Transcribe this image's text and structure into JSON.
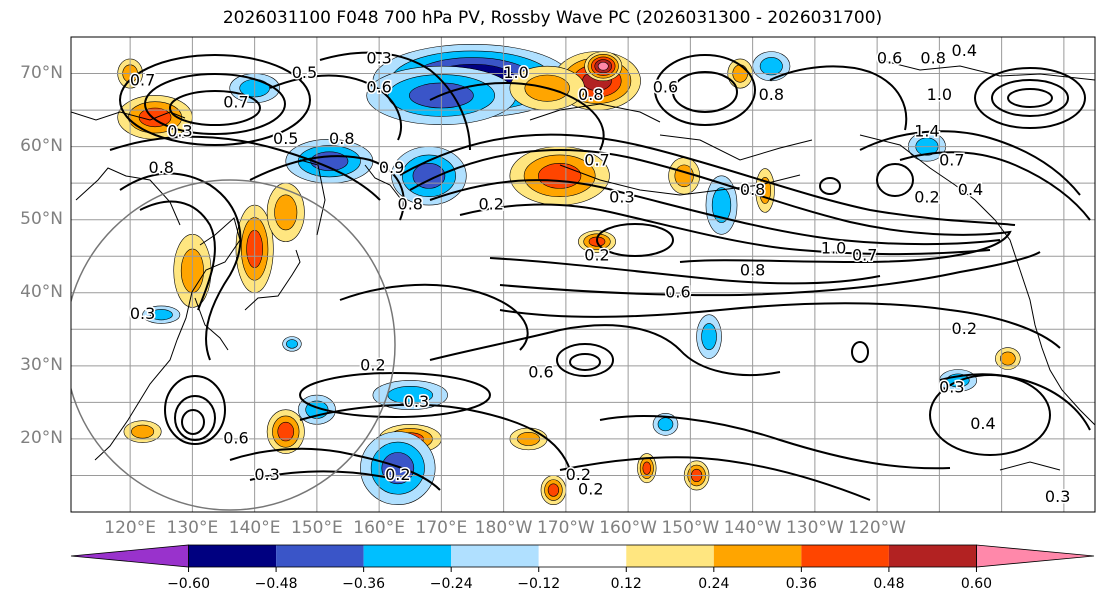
{
  "title": "2026031100 F048 700 hPa PV, Rossby Wave PC (2026031300 - 2026031700)",
  "lat_labels": [
    "70°N",
    "60°N",
    "50°N",
    "40°N",
    "30°N",
    "20°N"
  ],
  "lon_labels": [
    "120°E",
    "130°E",
    "140°E",
    "150°E",
    "160°E",
    "170°E",
    "180°W",
    "170°W",
    "160°W",
    "150°W",
    "140°W",
    "130°W",
    "120°W"
  ],
  "colorbar": {
    "tick_labels": [
      "−0.60",
      "−0.48",
      "−0.36",
      "−0.24",
      "−0.12",
      "0.12",
      "0.24",
      "0.36",
      "0.48",
      "0.60"
    ],
    "colors": [
      "#9932cc",
      "#000080",
      "#3a55c8",
      "#00bfff",
      "#b0e0ff",
      "#ffffff",
      "#ffe680",
      "#ffa500",
      "#ff4500",
      "#b22222",
      "#ff88aa"
    ]
  },
  "contour_labels": [
    {
      "text": "0.3",
      "lon": 160,
      "lat": 72
    },
    {
      "text": "0.5",
      "lon": 148,
      "lat": 70
    },
    {
      "text": "0.6",
      "lon": 160,
      "lat": 68
    },
    {
      "text": "0.7",
      "lon": 122,
      "lat": 69
    },
    {
      "text": "0.7",
      "lon": 137,
      "lat": 66
    },
    {
      "text": "0.5",
      "lon": 145,
      "lat": 61
    },
    {
      "text": "0.8",
      "lon": 154,
      "lat": 61
    },
    {
      "text": "1.0",
      "lon": 182,
      "lat": 70
    },
    {
      "text": "0.8",
      "lon": 194,
      "lat": 67
    },
    {
      "text": "0.6",
      "lon": 206,
      "lat": 68
    },
    {
      "text": "0.8",
      "lon": 223,
      "lat": 67
    },
    {
      "text": "0.6",
      "lon": 242,
      "lat": 72
    },
    {
      "text": "0.8",
      "lon": 249,
      "lat": 72
    },
    {
      "text": "0.4",
      "lon": 254,
      "lat": 73
    },
    {
      "text": "1.0",
      "lon": 250,
      "lat": 67
    },
    {
      "text": "1.4",
      "lon": 248,
      "lat": 62
    },
    {
      "text": "0.7",
      "lon": 252,
      "lat": 58
    },
    {
      "text": "0.8",
      "lon": 125,
      "lat": 57
    },
    {
      "text": "0.3",
      "lon": 128,
      "lat": 62
    },
    {
      "text": "0.8",
      "lon": 165,
      "lat": 52
    },
    {
      "text": "0.9",
      "lon": 162,
      "lat": 57
    },
    {
      "text": "0.2",
      "lon": 178,
      "lat": 52
    },
    {
      "text": "0.7",
      "lon": 195,
      "lat": 58
    },
    {
      "text": "0.3",
      "lon": 199,
      "lat": 53
    },
    {
      "text": "0.2",
      "lon": 195,
      "lat": 45
    },
    {
      "text": "0.8",
      "lon": 220,
      "lat": 54
    },
    {
      "text": "0.2",
      "lon": 248,
      "lat": 53
    },
    {
      "text": "0.4",
      "lon": 255,
      "lat": 54
    },
    {
      "text": "1.0",
      "lon": 233,
      "lat": 46
    },
    {
      "text": "0.7",
      "lon": 238,
      "lat": 45
    },
    {
      "text": "0.8",
      "lon": 220,
      "lat": 43
    },
    {
      "text": "0.6",
      "lon": 208,
      "lat": 40
    },
    {
      "text": "0.2",
      "lon": 254,
      "lat": 35
    },
    {
      "text": "0.2",
      "lon": 159,
      "lat": 30
    },
    {
      "text": "0.3",
      "lon": 166,
      "lat": 25
    },
    {
      "text": "0.6",
      "lon": 186,
      "lat": 29
    },
    {
      "text": "0.3",
      "lon": 252,
      "lat": 27
    },
    {
      "text": "0.4",
      "lon": 257,
      "lat": 22
    },
    {
      "text": "0.6",
      "lon": 137,
      "lat": 20
    },
    {
      "text": "0.3",
      "lon": 142,
      "lat": 15
    },
    {
      "text": "0.2",
      "lon": 163,
      "lat": 15
    },
    {
      "text": "0.2",
      "lon": 192,
      "lat": 15
    },
    {
      "text": "0.2",
      "lon": 194,
      "lat": 13
    },
    {
      "text": "0.3",
      "lon": 269,
      "lat": 12
    },
    {
      "text": "0.3",
      "lon": 122,
      "lat": 37
    }
  ],
  "anomalies": [
    {
      "lon": 175,
      "lat": 69,
      "rx": 16,
      "ry": 5,
      "value": -0.62
    },
    {
      "lon": 170,
      "lat": 67,
      "rx": 12,
      "ry": 4,
      "value": -0.4
    },
    {
      "lon": 195,
      "lat": 69,
      "rx": 7,
      "ry": 4,
      "value": 0.5
    },
    {
      "lon": 196,
      "lat": 71,
      "rx": 3,
      "ry": 2,
      "value": 0.65
    },
    {
      "lon": 189,
      "lat": 56,
      "rx": 8,
      "ry": 4,
      "value": 0.45
    },
    {
      "lon": 168,
      "lat": 56,
      "rx": 6,
      "ry": 4,
      "value": -0.45
    },
    {
      "lon": 152,
      "lat": 58,
      "rx": 7,
      "ry": 3,
      "value": -0.4
    },
    {
      "lon": 124,
      "lat": 64,
      "rx": 6,
      "ry": 3,
      "value": 0.42
    },
    {
      "lon": 140,
      "lat": 68,
      "rx": 4,
      "ry": 2,
      "value": -0.25
    },
    {
      "lon": 140,
      "lat": 46,
      "rx": 3,
      "ry": 6,
      "value": 0.36
    },
    {
      "lon": 130,
      "lat": 43,
      "rx": 3,
      "ry": 5,
      "value": 0.35
    },
    {
      "lon": 145,
      "lat": 51,
      "rx": 3,
      "ry": 4,
      "value": 0.33
    },
    {
      "lon": 195,
      "lat": 47,
      "rx": 3,
      "ry": 1.5,
      "value": 0.4
    },
    {
      "lon": 187,
      "lat": 68,
      "rx": 6,
      "ry": 3,
      "value": 0.35
    },
    {
      "lon": 209,
      "lat": 56,
      "rx": 2.5,
      "ry": 2.5,
      "value": 0.3
    },
    {
      "lon": 215,
      "lat": 52,
      "rx": 2.5,
      "ry": 4,
      "value": -0.3
    },
    {
      "lon": 222,
      "lat": 54,
      "rx": 1.5,
      "ry": 3,
      "value": 0.3
    },
    {
      "lon": 145,
      "lat": 21,
      "rx": 3,
      "ry": 3,
      "value": 0.42
    },
    {
      "lon": 165,
      "lat": 20,
      "rx": 5,
      "ry": 2,
      "value": 0.45
    },
    {
      "lon": 163,
      "lat": 16,
      "rx": 6,
      "ry": 5,
      "value": -0.4
    },
    {
      "lon": 150,
      "lat": 24,
      "rx": 3,
      "ry": 2,
      "value": -0.25
    },
    {
      "lon": 165,
      "lat": 26,
      "rx": 6,
      "ry": 2,
      "value": -0.3
    },
    {
      "lon": 188,
      "lat": 13,
      "rx": 2,
      "ry": 2,
      "value": 0.4
    },
    {
      "lon": 203,
      "lat": 16,
      "rx": 1.5,
      "ry": 2,
      "value": 0.4
    },
    {
      "lon": 211,
      "lat": 15,
      "rx": 2,
      "ry": 2,
      "value": 0.4
    },
    {
      "lon": 184,
      "lat": 20,
      "rx": 3,
      "ry": 1.5,
      "value": 0.3
    },
    {
      "lon": 213,
      "lat": 34,
      "rx": 2,
      "ry": 3,
      "value": -0.3
    },
    {
      "lon": 206,
      "lat": 22,
      "rx": 2,
      "ry": 1.5,
      "value": -0.25
    },
    {
      "lon": 248,
      "lat": 60,
      "rx": 3,
      "ry": 2,
      "value": -0.3
    },
    {
      "lon": 223,
      "lat": 71,
      "rx": 3,
      "ry": 2,
      "value": -0.28
    },
    {
      "lon": 218,
      "lat": 70,
      "rx": 2,
      "ry": 2,
      "value": 0.35
    },
    {
      "lon": 253,
      "lat": 28,
      "rx": 3,
      "ry": 1.5,
      "value": -0.28
    },
    {
      "lon": 261,
      "lat": 31,
      "rx": 2,
      "ry": 1.5,
      "value": 0.3
    },
    {
      "lon": 125,
      "lat": 37,
      "rx": 3,
      "ry": 1.2,
      "value": -0.28
    },
    {
      "lon": 122,
      "lat": 21,
      "rx": 3,
      "ry": 1.5,
      "value": 0.35
    },
    {
      "lon": 146,
      "lat": 33,
      "rx": 1.5,
      "ry": 1,
      "value": -0.3
    },
    {
      "lon": 120,
      "lat": 70,
      "rx": 2,
      "ry": 2,
      "value": 0.28
    }
  ]
}
